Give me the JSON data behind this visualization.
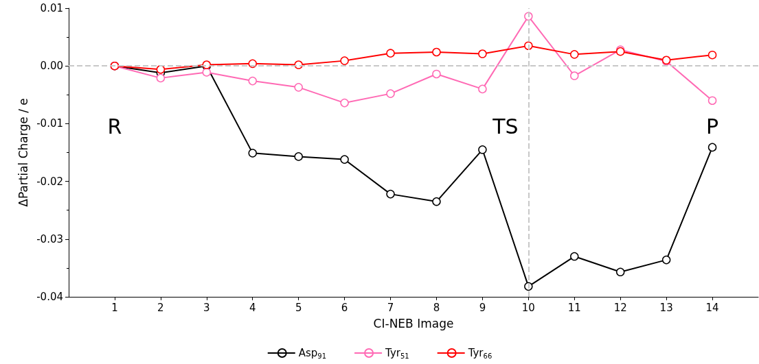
{
  "chart_data": {
    "type": "line",
    "xlabel": "CI-NEB Image",
    "ylabel": "ΔPartial Charge / e",
    "x": [
      1,
      2,
      3,
      4,
      5,
      6,
      7,
      8,
      9,
      10,
      11,
      12,
      13,
      14
    ],
    "series": [
      {
        "name": "Asp$_{91}$",
        "color": "#000000",
        "values": [
          0.0,
          -0.0012,
          0.0,
          -0.0151,
          -0.0157,
          -0.0162,
          -0.0222,
          -0.0235,
          -0.0145,
          -0.0382,
          -0.033,
          -0.0357,
          -0.0336,
          -0.0141
        ]
      },
      {
        "name": "Tyr$_{51}$",
        "color": "#ff69b4",
        "values": [
          0.0,
          -0.0021,
          -0.0011,
          -0.0026,
          -0.0037,
          -0.0064,
          -0.0048,
          -0.0014,
          -0.004,
          0.0086,
          -0.0017,
          0.0028,
          0.0008,
          -0.006
        ]
      },
      {
        "name": "Tyr$_{66}$",
        "color": "#ff0000",
        "values": [
          0.0,
          -0.0006,
          0.0002,
          0.0004,
          0.0002,
          0.0009,
          0.0022,
          0.0024,
          0.0021,
          0.0035,
          0.002,
          0.0025,
          0.001,
          0.0019
        ]
      }
    ],
    "xlim": [
      0,
      15
    ],
    "xticks": [
      1,
      2,
      3,
      4,
      5,
      6,
      7,
      8,
      9,
      10,
      11,
      12,
      13,
      14
    ],
    "ylim": [
      -0.04,
      0.01
    ],
    "yticks": [
      {
        "value": -0.04,
        "label": "-0.04"
      },
      {
        "value": -0.03,
        "label": "-0.03"
      },
      {
        "value": -0.02,
        "label": "-0.02"
      },
      {
        "value": -0.01,
        "label": "-0.01"
      },
      {
        "value": 0,
        "label": "0.00"
      },
      {
        "value": 0.01,
        "label": "0.01"
      }
    ],
    "ref_lines": [
      {
        "axis": "y",
        "value": 0,
        "color": "#c8c8c8",
        "line_style": "dashed"
      },
      {
        "axis": "x",
        "value": 10,
        "color": "#c8c8c8",
        "line_style": "dashed"
      }
    ],
    "annotations": [
      "R",
      "TS",
      "P"
    ],
    "marker": "circle",
    "line_style": "solid",
    "grid": false,
    "legend": "bottom"
  }
}
